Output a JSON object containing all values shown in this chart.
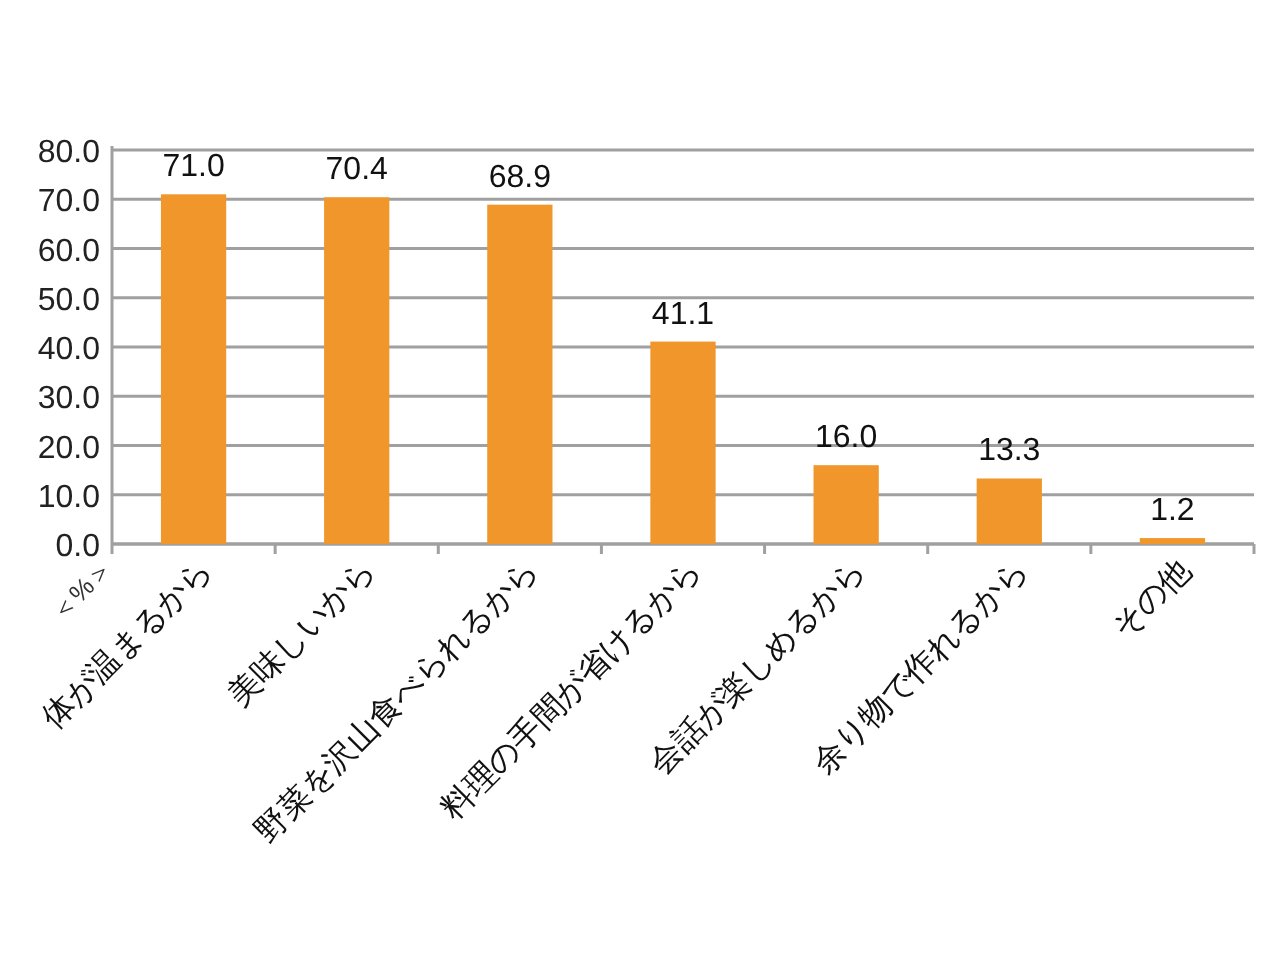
{
  "chart_data": {
    "type": "bar",
    "ylabel": "＜%＞",
    "categories": [
      "体が温まるから",
      "美味しいから",
      "野菜を沢山食べられるから",
      "料理の手間が省けるから",
      "会話が楽しめるから",
      "余り物で作れるから",
      "その他"
    ],
    "values": [
      71.0,
      70.4,
      68.9,
      41.1,
      16.0,
      13.3,
      1.2
    ],
    "value_labels": [
      "71.0",
      "70.4",
      "68.9",
      "41.1",
      "16.0",
      "13.3",
      "1.2"
    ],
    "color": "#f0962a",
    "ylim": [
      0,
      80
    ],
    "yticks": [
      {
        "value": 0,
        "label": "0.0"
      },
      {
        "value": 10,
        "label": "10.0"
      },
      {
        "value": 20,
        "label": "20.0"
      },
      {
        "value": 30,
        "label": "30.0"
      },
      {
        "value": 40,
        "label": "40.0"
      },
      {
        "value": 50,
        "label": "50.0"
      },
      {
        "value": 60,
        "label": "60.0"
      },
      {
        "value": 70,
        "label": "70.0"
      },
      {
        "value": 80,
        "label": "80.0"
      }
    ],
    "grid": "y"
  }
}
